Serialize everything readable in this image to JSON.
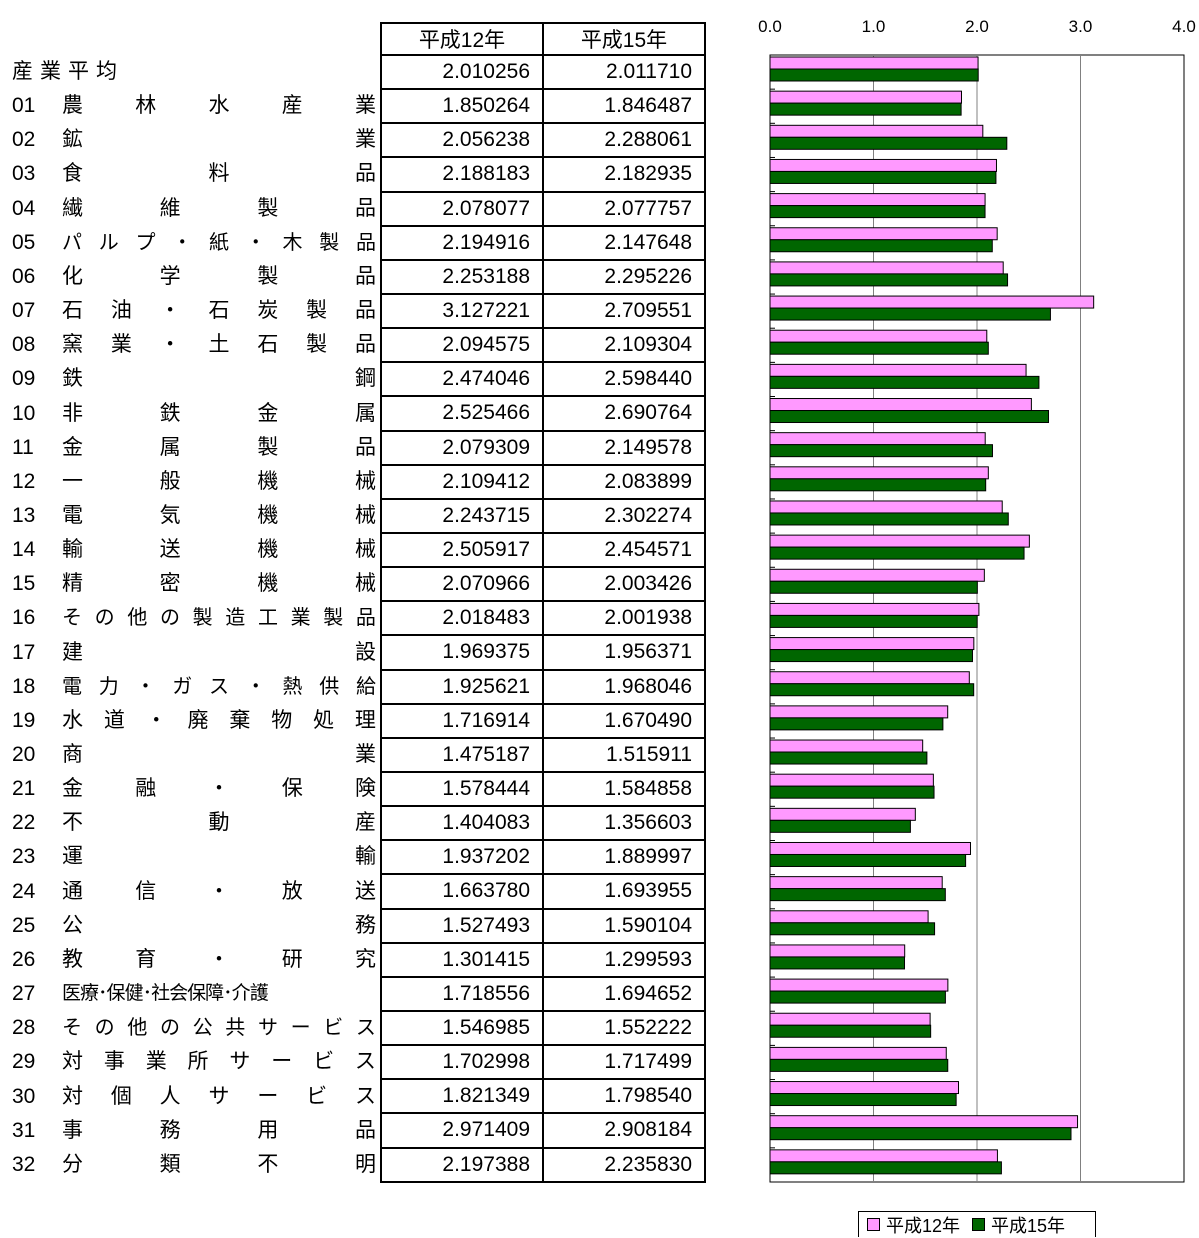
{
  "table": {
    "headers": [
      "平成12年",
      "平成15年"
    ],
    "rows": [
      {
        "code": "",
        "name": "産業平均",
        "v12": "2.010256",
        "v15": "2.011710"
      },
      {
        "code": "01",
        "name": "農林水産業",
        "v12": "1.850264",
        "v15": "1.846487"
      },
      {
        "code": "02",
        "name": "鉱業",
        "v12": "2.056238",
        "v15": "2.288061"
      },
      {
        "code": "03",
        "name": "食料品",
        "v12": "2.188183",
        "v15": "2.182935"
      },
      {
        "code": "04",
        "name": "繊維製品",
        "v12": "2.078077",
        "v15": "2.077757"
      },
      {
        "code": "05",
        "name": "パルプ・紙・木製品",
        "v12": "2.194916",
        "v15": "2.147648"
      },
      {
        "code": "06",
        "name": "化学製品",
        "v12": "2.253188",
        "v15": "2.295226"
      },
      {
        "code": "07",
        "name": "石油・石炭製品",
        "v12": "3.127221",
        "v15": "2.709551"
      },
      {
        "code": "08",
        "name": "窯業・土石製品",
        "v12": "2.094575",
        "v15": "2.109304"
      },
      {
        "code": "09",
        "name": "鉄鋼",
        "v12": "2.474046",
        "v15": "2.598440"
      },
      {
        "code": "10",
        "name": "非鉄金属",
        "v12": "2.525466",
        "v15": "2.690764"
      },
      {
        "code": "11",
        "name": "金属製品",
        "v12": "2.079309",
        "v15": "2.149578"
      },
      {
        "code": "12",
        "name": "一般機械",
        "v12": "2.109412",
        "v15": "2.083899"
      },
      {
        "code": "13",
        "name": "電気機械",
        "v12": "2.243715",
        "v15": "2.302274"
      },
      {
        "code": "14",
        "name": "輸送機械",
        "v12": "2.505917",
        "v15": "2.454571"
      },
      {
        "code": "15",
        "name": "精密機械",
        "v12": "2.070966",
        "v15": "2.003426"
      },
      {
        "code": "16",
        "name": "その他の製造工業製品",
        "v12": "2.018483",
        "v15": "2.001938"
      },
      {
        "code": "17",
        "name": "建設",
        "v12": "1.969375",
        "v15": "1.956371"
      },
      {
        "code": "18",
        "name": "電力・ガス・熱供給",
        "v12": "1.925621",
        "v15": "1.968046"
      },
      {
        "code": "19",
        "name": "水道・廃棄物処理",
        "v12": "1.716914",
        "v15": "1.670490"
      },
      {
        "code": "20",
        "name": "商業",
        "v12": "1.475187",
        "v15": "1.515911"
      },
      {
        "code": "21",
        "name": "金融・保険",
        "v12": "1.578444",
        "v15": "1.584858"
      },
      {
        "code": "22",
        "name": "不動産",
        "v12": "1.404083",
        "v15": "1.356603"
      },
      {
        "code": "23",
        "name": "運輸",
        "v12": "1.937202",
        "v15": "1.889997"
      },
      {
        "code": "24",
        "name": "通信・放送",
        "v12": "1.663780",
        "v15": "1.693955"
      },
      {
        "code": "25",
        "name": "公務",
        "v12": "1.527493",
        "v15": "1.590104"
      },
      {
        "code": "26",
        "name": "教育・研究",
        "v12": "1.301415",
        "v15": "1.299593"
      },
      {
        "code": "27",
        "name": "医療･保健･社会保障･介護",
        "v12": "1.718556",
        "v15": "1.694652"
      },
      {
        "code": "28",
        "name": "その他の公共サービス",
        "v12": "1.546985",
        "v15": "1.552222"
      },
      {
        "code": "29",
        "name": "対事業所サービス",
        "v12": "1.702998",
        "v15": "1.717499"
      },
      {
        "code": "30",
        "name": "対個人サービス",
        "v12": "1.821349",
        "v15": "1.798540"
      },
      {
        "code": "31",
        "name": "事務用品",
        "v12": "2.971409",
        "v15": "2.908184"
      },
      {
        "code": "32",
        "name": "分類不明",
        "v12": "2.197388",
        "v15": "2.235830"
      }
    ]
  },
  "chart_data": {
    "type": "bar",
    "orientation": "horizontal",
    "categories": [
      "産業平均",
      "01 農林水産業",
      "02 鉱業",
      "03 食料品",
      "04 繊維製品",
      "05 パルプ・紙・木製品",
      "06 化学製品",
      "07 石油・石炭製品",
      "08 窯業・土石製品",
      "09 鉄鋼",
      "10 非鉄金属",
      "11 金属製品",
      "12 一般機械",
      "13 電気機械",
      "14 輸送機械",
      "15 精密機械",
      "16 その他の製造工業製品",
      "17 建設",
      "18 電力・ガス・熱供給",
      "19 水道・廃棄物処理",
      "20 商業",
      "21 金融・保険",
      "22 不動産",
      "23 運輸",
      "24 通信・放送",
      "25 公務",
      "26 教育・研究",
      "27 医療･保健･社会保障･介護",
      "28 その他の公共サービス",
      "29 対事業所サービス",
      "30 対個人サービス",
      "31 事務用品",
      "32 分類不明"
    ],
    "series": [
      {
        "name": "平成12年",
        "color": "#ff99ff",
        "values": [
          2.010256,
          1.850264,
          2.056238,
          2.188183,
          2.078077,
          2.194916,
          2.253188,
          3.127221,
          2.094575,
          2.474046,
          2.525466,
          2.079309,
          2.109412,
          2.243715,
          2.505917,
          2.070966,
          2.018483,
          1.969375,
          1.925621,
          1.716914,
          1.475187,
          1.578444,
          1.404083,
          1.937202,
          1.66378,
          1.527493,
          1.301415,
          1.718556,
          1.546985,
          1.702998,
          1.821349,
          2.971409,
          2.197388
        ]
      },
      {
        "name": "平成15年",
        "color": "#006600",
        "values": [
          2.01171,
          1.846487,
          2.288061,
          2.182935,
          2.077757,
          2.147648,
          2.295226,
          2.709551,
          2.109304,
          2.59844,
          2.690764,
          2.149578,
          2.083899,
          2.302274,
          2.454571,
          2.003426,
          2.001938,
          1.956371,
          1.968046,
          1.67049,
          1.515911,
          1.584858,
          1.356603,
          1.889997,
          1.693955,
          1.590104,
          1.299593,
          1.694652,
          1.552222,
          1.717499,
          1.79854,
          2.908184,
          2.23583
        ]
      }
    ],
    "xlim": [
      0,
      4
    ],
    "xticks": [
      "0.0",
      "1.0",
      "2.0",
      "3.0",
      "4.0"
    ],
    "xaxis_position": "top",
    "grid": true,
    "legend": "bottom"
  }
}
